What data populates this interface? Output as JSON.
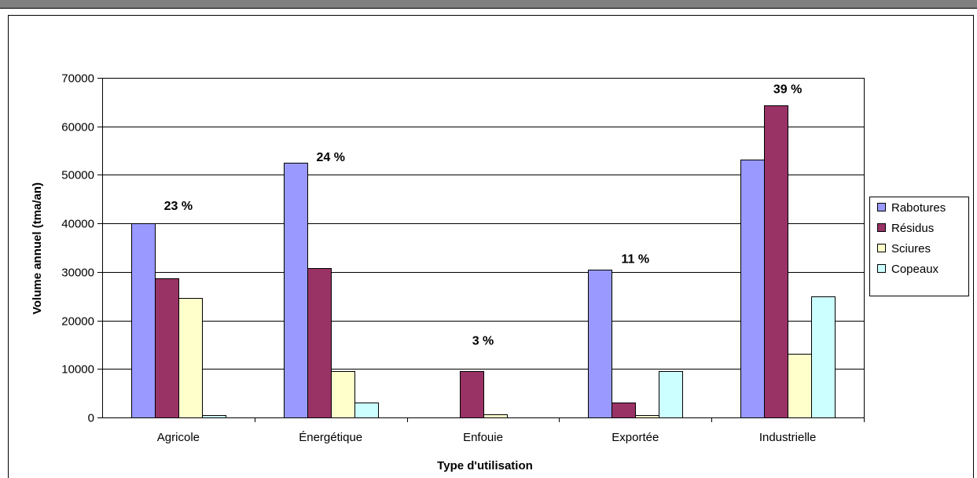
{
  "chart_data": {
    "type": "bar",
    "title": "",
    "xlabel": "Type d'utilisation",
    "ylabel": "Volume annuel (tma/an)",
    "ylim": [
      0,
      70000
    ],
    "yticks": [
      0,
      10000,
      20000,
      30000,
      40000,
      50000,
      60000,
      70000
    ],
    "grid": true,
    "legend_position": "right",
    "categories": [
      "Agricole",
      "Énergétique",
      "Enfouie",
      "Exportée",
      "Industrielle"
    ],
    "series": [
      {
        "name": "Rabotures",
        "color": "#9999ff",
        "values": [
          40000,
          52500,
          0,
          30500,
          53200
        ]
      },
      {
        "name": "Résidus",
        "color": "#993366",
        "values": [
          28700,
          30800,
          9500,
          3000,
          64300
        ]
      },
      {
        "name": "Sciures",
        "color": "#ffffcc",
        "values": [
          24700,
          9500,
          700,
          500,
          13100
        ]
      },
      {
        "name": "Copeaux",
        "color": "#ccffff",
        "values": [
          500,
          3000,
          0,
          9500,
          25000
        ]
      }
    ],
    "annotations": [
      {
        "category": "Agricole",
        "text": "23 %",
        "y": 42800
      },
      {
        "category": "Énergétique",
        "text": "24 %",
        "y": 52800
      },
      {
        "category": "Enfouie",
        "text": "3 %",
        "y": 15000
      },
      {
        "category": "Exportée",
        "text": "11 %",
        "y": 31800
      },
      {
        "category": "Industrielle",
        "text": "39 %",
        "y": 66800
      }
    ]
  }
}
